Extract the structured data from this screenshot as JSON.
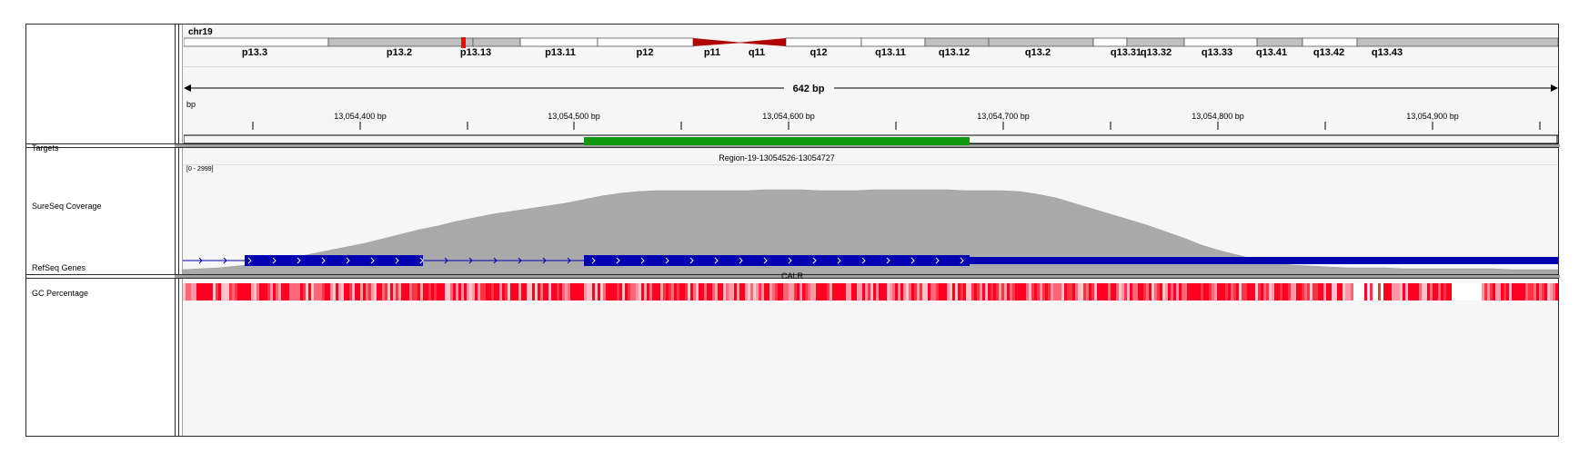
{
  "chromosome": "chr19",
  "cytobands": [
    {
      "label": "p13.3",
      "stain": "white"
    },
    {
      "label": "p13.2",
      "stain": "grey"
    },
    {
      "label": "p13.13",
      "stain": "grey"
    },
    {
      "label": "p13.11",
      "stain": "white"
    },
    {
      "label": "p12",
      "stain": "white"
    },
    {
      "label": "p11",
      "stain": "centromere"
    },
    {
      "label": "q11",
      "stain": "centromere"
    },
    {
      "label": "q12",
      "stain": "white"
    },
    {
      "label": "q13.11",
      "stain": "white"
    },
    {
      "label": "q13.12",
      "stain": "grey"
    },
    {
      "label": "q13.2",
      "stain": "grey"
    },
    {
      "label": "q13.31",
      "stain": "white"
    },
    {
      "label": "q13.32",
      "stain": "grey"
    },
    {
      "label": "q13.33",
      "stain": "white"
    },
    {
      "label": "q13.41",
      "stain": "grey"
    },
    {
      "label": "q13.42",
      "stain": "white"
    },
    {
      "label": "q13.43",
      "stain": "grey"
    }
  ],
  "ruler": {
    "span_label": "642 bp",
    "left_clip_label": "bp",
    "ticks": [
      "13,054,400 bp",
      "13,054,500 bp",
      "13,054,600 bp",
      "13,054,700 bp",
      "13,054,800 bp",
      "13,054,900 bp"
    ]
  },
  "tracks": {
    "targets": {
      "label": "Targets",
      "region_name": "Region-19-13054526-13054727",
      "color": "#119911"
    },
    "coverage": {
      "label": "SureSeq Coverage",
      "range_label": "[0 - 2999]",
      "color": "#aaaaaa"
    },
    "genes": {
      "label": "RefSeq Genes",
      "gene_name": "CALR",
      "color": "#0000b2"
    },
    "gc": {
      "label": "GC Percentage",
      "color": "#ff0022"
    }
  },
  "colors": {
    "centromere": "#b00000",
    "band_marker": "#ff0000",
    "band_grey": "#c0c0c0",
    "background": "#f6f6f6"
  }
}
